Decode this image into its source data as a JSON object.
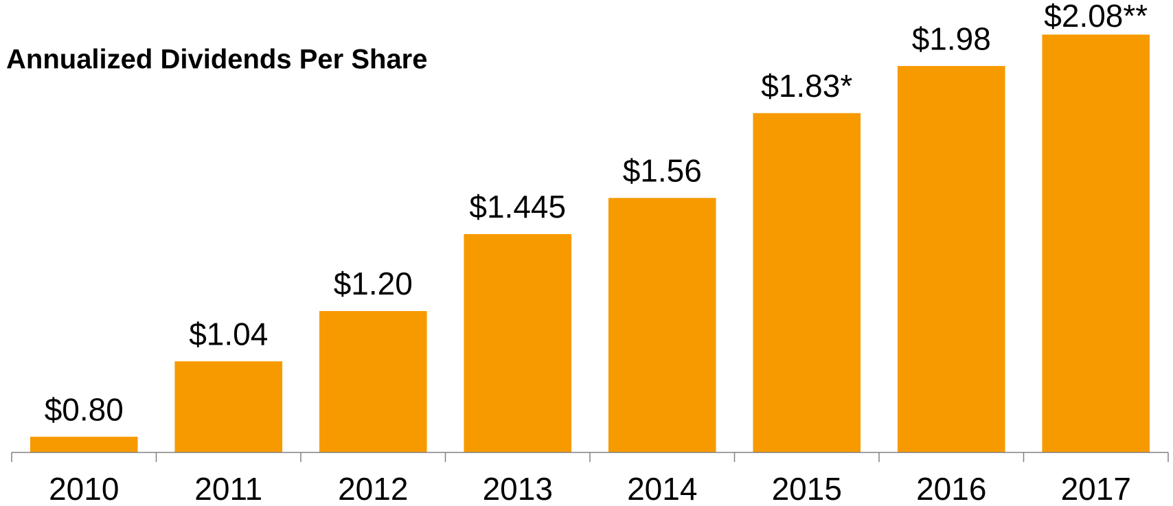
{
  "chart_data": {
    "type": "bar",
    "title": "Annualized Dividends Per Share",
    "categories": [
      "2010",
      "2011",
      "2012",
      "2013",
      "2014",
      "2015",
      "2016",
      "2017"
    ],
    "values": [
      0.8,
      1.04,
      1.2,
      1.445,
      1.56,
      1.83,
      1.98,
      2.08
    ],
    "value_labels": [
      "$0.80",
      "$1.04",
      "$1.20",
      "$1.445",
      "$1.56",
      "$1.83*",
      "$1.98",
      "$2.08**"
    ],
    "color": "#f79a00",
    "ylim": [
      0.75,
      2.19
    ]
  }
}
